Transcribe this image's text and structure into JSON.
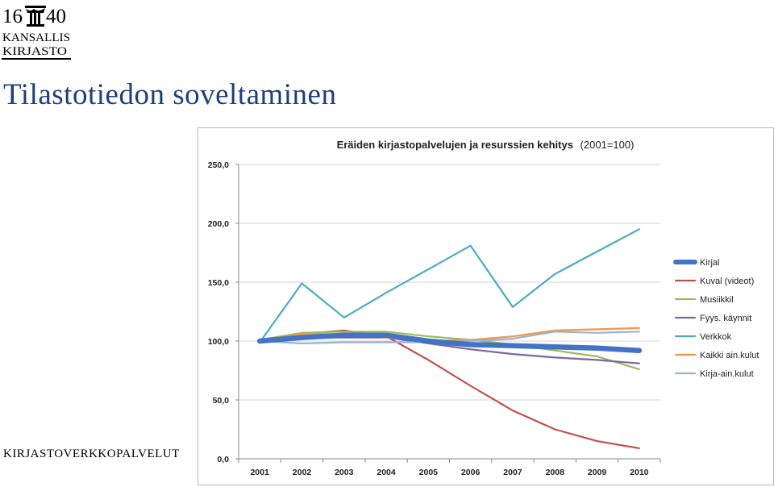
{
  "logo": {
    "year_left": "16",
    "year_right": "40",
    "line1": "KANSALLIS",
    "line2": "KIRJASTO"
  },
  "slide": {
    "title": "Tilastotiedon soveltaminen",
    "footer": "KIRJASTOVERKKOPALVELUT"
  },
  "chart_data": {
    "type": "line",
    "title": "Eräiden kirjastopalvelujen ja resurssien kehitys",
    "title_suffix": "(2001=100)",
    "x": [
      "2001",
      "2002",
      "2003",
      "2004",
      "2005",
      "2006",
      "2007",
      "2008",
      "2009",
      "2010"
    ],
    "ylim": [
      0,
      250
    ],
    "yticks": [
      "0,0",
      "50,0",
      "100,0",
      "150,0",
      "200,0",
      "250,0"
    ],
    "grid": "horizontal",
    "legend_position": "right",
    "series": [
      {
        "name": "Kirjal",
        "color": "#4472c4",
        "emphasis": true,
        "values": [
          100,
          103,
          105,
          105,
          100,
          97,
          96,
          95,
          94,
          92
        ]
      },
      {
        "name": "Kuval (videot)",
        "color": "#c0504d",
        "values": [
          100,
          106,
          109,
          104,
          84,
          62,
          41,
          25,
          15,
          9
        ]
      },
      {
        "name": "Musiikkil",
        "color": "#9bbb59",
        "values": [
          101,
          107,
          108,
          108,
          104,
          101,
          97,
          92,
          87,
          76
        ]
      },
      {
        "name": "Fyys. käynnit",
        "color": "#8064a2",
        "values": [
          100,
          103,
          103,
          103,
          98,
          93,
          89,
          86,
          84,
          81
        ]
      },
      {
        "name": "Verkkok",
        "color": "#4bacc6",
        "values": [
          99,
          149,
          120,
          141,
          161,
          181,
          129,
          157,
          176,
          195
        ]
      },
      {
        "name": "Kaikki ain.kulut",
        "color": "#f79646",
        "values": [
          100,
          106,
          106,
          103,
          100,
          101,
          104,
          109,
          110,
          111
        ]
      },
      {
        "name": "Kirja-ain.kulut",
        "color": "#95b3d7",
        "values": [
          100,
          98,
          99,
          99,
          99,
          100,
          102,
          108,
          107,
          108
        ]
      }
    ]
  }
}
